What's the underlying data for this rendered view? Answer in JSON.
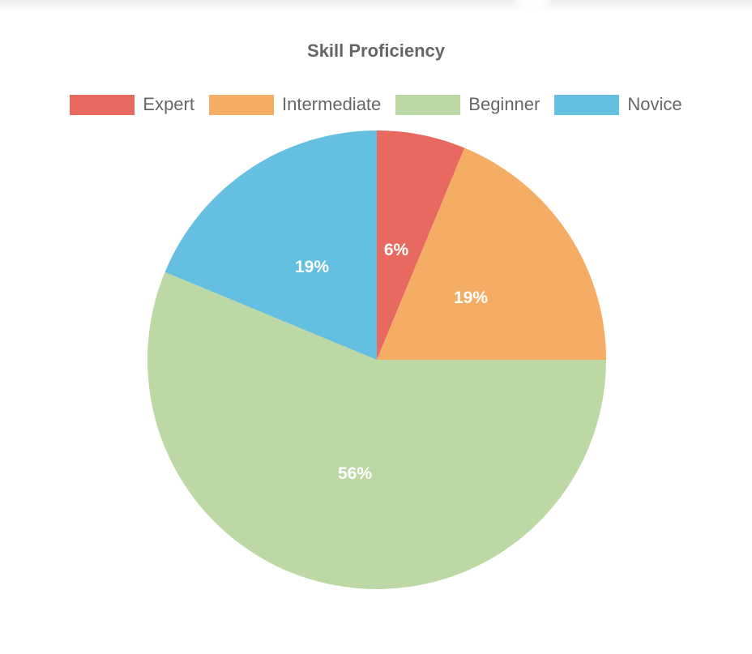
{
  "chart": {
    "title": "Skill Proficiency",
    "legend": [
      {
        "label": "Expert",
        "color": "#e8695f"
      },
      {
        "label": "Intermediate",
        "color": "#f5ad66"
      },
      {
        "label": "Beginner",
        "color": "#bcd9a5"
      },
      {
        "label": "Novice",
        "color": "#64bfe0"
      }
    ],
    "slice_labels": [
      "6%",
      "19%",
      "56%",
      "19%"
    ]
  },
  "chart_data": {
    "type": "pie",
    "title": "Skill Proficiency",
    "categories": [
      "Expert",
      "Intermediate",
      "Beginner",
      "Novice"
    ],
    "values": [
      6.25,
      18.75,
      56.25,
      18.75
    ],
    "labels": [
      "6%",
      "19%",
      "56%",
      "19%"
    ],
    "colors": [
      "#e8695f",
      "#f5ad66",
      "#bcd9a5",
      "#64bfe0"
    ],
    "start_angle": "12 o'clock",
    "direction": "clockwise",
    "legend_position": "top",
    "center": [
      465,
      444
    ],
    "radius": 283
  }
}
